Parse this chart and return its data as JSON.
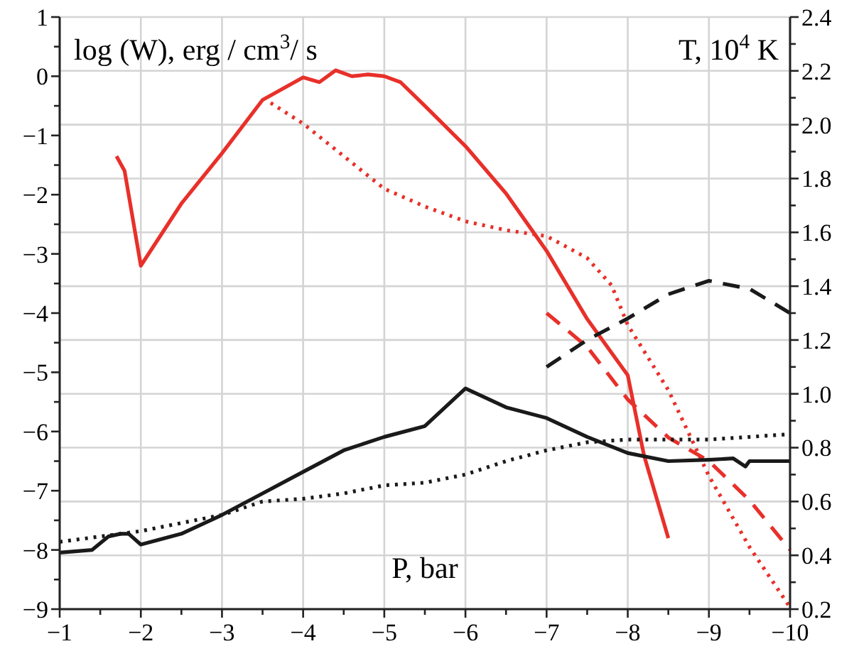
{
  "chart_data": {
    "type": "line",
    "xlabel": "P, bar",
    "ylabel": "log (W), erg / cm$^{3}$/ s",
    "y2label": "T, 10$^{4}$ K",
    "xlim": [
      -1,
      -10
    ],
    "ylim": [
      -9,
      1
    ],
    "y2lim": [
      0.2,
      2.4
    ],
    "xticks": [
      -1,
      {
        "value": -1.5,
        "label": null
      },
      -2,
      {
        "value": -2.5,
        "label": null
      },
      -3,
      {
        "value": -3.5,
        "label": null
      },
      -4,
      {
        "value": -4.5,
        "label": null
      },
      -5,
      {
        "value": -5.5,
        "label": null
      },
      -6,
      {
        "value": -6.5,
        "label": null
      },
      -7,
      {
        "value": -7.5,
        "label": null
      },
      -8,
      {
        "value": -8.5,
        "label": null
      },
      -9,
      {
        "value": -9.5,
        "label": null
      },
      -10
    ],
    "yticks": [
      -9,
      {
        "value": -8.5,
        "label": null
      },
      -8,
      {
        "value": -7.5,
        "label": null
      },
      -7,
      {
        "value": -6.5,
        "label": null
      },
      -6,
      {
        "value": -5.5,
        "label": null
      },
      -5,
      {
        "value": -4.5,
        "label": null
      },
      -4,
      {
        "value": -3.5,
        "label": null
      },
      -3,
      {
        "value": -2.5,
        "label": null
      },
      -2,
      {
        "value": -1.5,
        "label": null
      },
      -1,
      {
        "value": -0.5,
        "label": null
      },
      0,
      {
        "value": 0.5,
        "label": null
      },
      1
    ],
    "y2ticks": [
      0.2,
      {
        "value": 0.3,
        "label": null
      },
      0.4,
      {
        "value": 0.5,
        "label": null
      },
      0.6,
      {
        "value": 0.7,
        "label": null
      },
      0.8,
      {
        "value": 0.9,
        "label": null
      },
      {
        "value": 1,
        "label": "1.0"
      },
      {
        "value": 1.1,
        "label": null
      },
      1.2,
      {
        "value": 1.3,
        "label": null
      },
      1.4,
      {
        "value": 1.5,
        "label": null
      },
      1.6,
      {
        "value": 1.7,
        "label": null
      },
      1.8,
      {
        "value": 1.9,
        "label": null
      },
      {
        "value": 2,
        "label": "2.0"
      },
      {
        "value": 2.1,
        "label": null
      },
      2.2,
      {
        "value": 2.3,
        "label": null
      },
      2.4
    ],
    "grid": true,
    "series": [
      {
        "color": "#e8302a",
        "line_style": "solid",
        "x": [
          -1.7,
          -1.8,
          -2.0,
          -2.5,
          -3.0,
          -3.5,
          -4.0,
          -4.2,
          -4.4,
          -4.6,
          -4.8,
          -5.0,
          -5.2,
          -5.5,
          -6.0,
          -6.5,
          -7.0,
          -7.5,
          -8.0,
          -8.2,
          -8.5
        ],
        "values": [
          -1.35,
          -1.6,
          -3.2,
          -2.15,
          -1.3,
          -0.4,
          -0.02,
          -0.1,
          0.1,
          0.0,
          0.03,
          0.0,
          -0.1,
          -0.5,
          -1.18,
          -1.98,
          -2.95,
          -4.1,
          -5.05,
          -6.4,
          -7.8
        ]
      },
      {
        "color": "#e8302a",
        "line_style": "dotted",
        "x": [
          -3.6,
          -4.0,
          -4.5,
          -5.0,
          -5.5,
          -6.0,
          -6.5,
          -7.0,
          -7.5,
          -7.8,
          -8.0,
          -8.5,
          -9.0,
          -9.5,
          -10.0
        ],
        "values": [
          -0.45,
          -0.8,
          -1.35,
          -1.9,
          -2.2,
          -2.45,
          -2.6,
          -2.7,
          -3.07,
          -3.53,
          -4.2,
          -5.3,
          -6.75,
          -7.95,
          -8.97
        ]
      },
      {
        "color": "#e8302a",
        "line_style": "dashed",
        "x": [
          -7.0,
          -7.5,
          -8.0,
          -8.5,
          -9.0,
          -9.5,
          -10.0
        ],
        "values": [
          -4.0,
          -4.57,
          -5.46,
          -6.1,
          -6.5,
          -7.16,
          -8.0
        ]
      },
      {
        "color": "#1a1a1a",
        "line_style": "solid",
        "axis": "y2",
        "x": [
          -1.0,
          -1.4,
          -1.6,
          -1.75,
          -1.85,
          -2.0,
          -2.5,
          -3.0,
          -3.5,
          -4.0,
          -4.5,
          -5.0,
          -5.5,
          -6.0,
          -6.5,
          -7.0,
          -7.5,
          -8.0,
          -8.5,
          -9.0,
          -9.3,
          -9.45,
          -9.5,
          -10.0
        ],
        "values": [
          0.41,
          0.42,
          0.47,
          0.48,
          0.48,
          0.44,
          0.48,
          0.55,
          0.63,
          0.71,
          0.79,
          0.84,
          0.88,
          1.02,
          0.95,
          0.91,
          0.84,
          0.78,
          0.75,
          0.755,
          0.76,
          0.73,
          0.75,
          0.75
        ]
      },
      {
        "color": "#1a1a1a",
        "line_style": "dotted",
        "axis": "y2",
        "x": [
          -1.0,
          -2.0,
          -3.0,
          -3.5,
          -4.0,
          -4.5,
          -5.0,
          -5.5,
          -6.0,
          -6.5,
          -7.0,
          -7.5,
          -8.0,
          -9.0,
          -10.0
        ],
        "values": [
          0.45,
          0.49,
          0.55,
          0.6,
          0.61,
          0.63,
          0.66,
          0.67,
          0.7,
          0.75,
          0.79,
          0.82,
          0.83,
          0.83,
          0.85
        ]
      },
      {
        "color": "#1a1a1a",
        "line_style": "dashed",
        "axis": "y2",
        "x": [
          -7.0,
          -7.5,
          -8.0,
          -8.5,
          -9.0,
          -9.5,
          -10.0
        ],
        "values": [
          1.1,
          1.2,
          1.28,
          1.37,
          1.42,
          1.39,
          1.3
        ]
      }
    ]
  }
}
